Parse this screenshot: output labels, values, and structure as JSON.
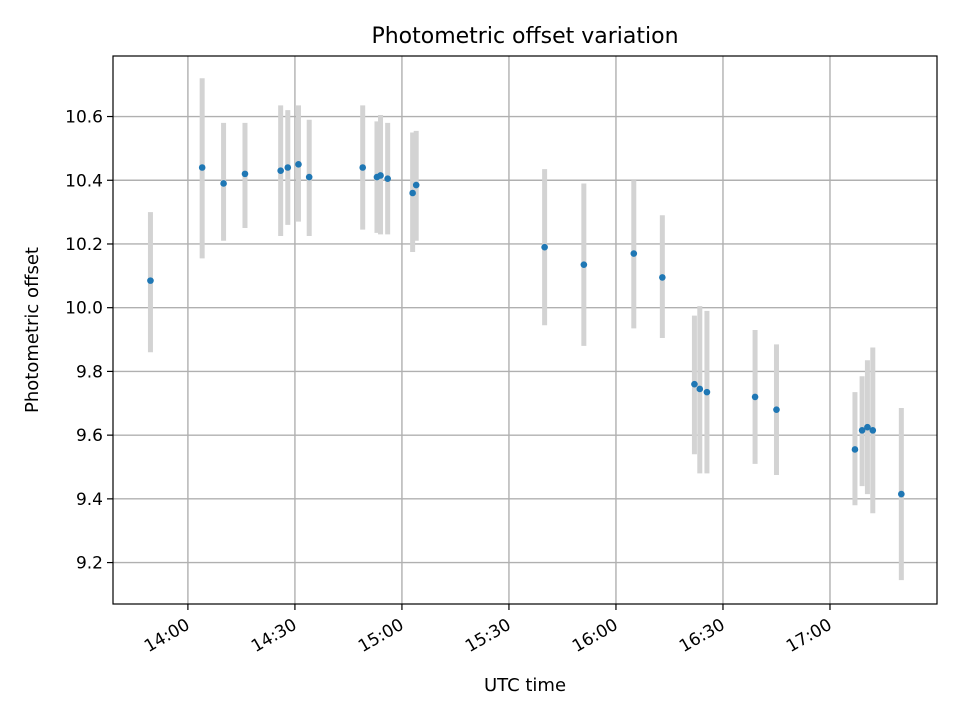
{
  "chart_data": {
    "type": "scatter",
    "title": "Photometric offset variation",
    "xlabel": "UTC time",
    "ylabel": "Photometric offset",
    "xlim": [
      "13:39",
      "17:30"
    ],
    "ylim": [
      9.07,
      10.79
    ],
    "xticks": [
      {
        "time": "14:00",
        "label": "14:00"
      },
      {
        "time": "14:30",
        "label": "14:30"
      },
      {
        "time": "15:00",
        "label": "15:00"
      },
      {
        "time": "15:30",
        "label": "15:30"
      },
      {
        "time": "16:00",
        "label": "16:00"
      },
      {
        "time": "16:30",
        "label": "16:30"
      },
      {
        "time": "17:00",
        "label": "17:00"
      }
    ],
    "yticks": [
      {
        "value": 9.2,
        "label": "9.2"
      },
      {
        "value": 9.4,
        "label": "9.4"
      },
      {
        "value": 9.6,
        "label": "9.6"
      },
      {
        "value": 9.8,
        "label": "9.8"
      },
      {
        "value": 10.0,
        "label": "10.0"
      },
      {
        "value": 10.2,
        "label": "10.2"
      },
      {
        "value": 10.4,
        "label": "10.4"
      },
      {
        "value": 10.6,
        "label": "10.6"
      }
    ],
    "grid": true,
    "marker_color": "#1f77b4",
    "errorbar_color": "#d3d3d3",
    "points": [
      {
        "x": "13:49:30",
        "y": 10.085,
        "lo": 9.86,
        "hi": 10.3
      },
      {
        "x": "14:04:00",
        "y": 10.44,
        "lo": 10.155,
        "hi": 10.72
      },
      {
        "x": "14:10:00",
        "y": 10.39,
        "lo": 10.21,
        "hi": 10.58
      },
      {
        "x": "14:16:00",
        "y": 10.42,
        "lo": 10.25,
        "hi": 10.58
      },
      {
        "x": "14:26:00",
        "y": 10.43,
        "lo": 10.225,
        "hi": 10.635
      },
      {
        "x": "14:28:00",
        "y": 10.44,
        "lo": 10.26,
        "hi": 10.62
      },
      {
        "x": "14:31:00",
        "y": 10.45,
        "lo": 10.27,
        "hi": 10.635
      },
      {
        "x": "14:34:00",
        "y": 10.41,
        "lo": 10.225,
        "hi": 10.59
      },
      {
        "x": "14:49:00",
        "y": 10.44,
        "lo": 10.245,
        "hi": 10.635
      },
      {
        "x": "14:53:00",
        "y": 10.41,
        "lo": 10.235,
        "hi": 10.585
      },
      {
        "x": "14:54:00",
        "y": 10.415,
        "lo": 10.23,
        "hi": 10.605
      },
      {
        "x": "14:56:00",
        "y": 10.405,
        "lo": 10.23,
        "hi": 10.58
      },
      {
        "x": "15:03:00",
        "y": 10.36,
        "lo": 10.175,
        "hi": 10.55
      },
      {
        "x": "15:04:00",
        "y": 10.385,
        "lo": 10.21,
        "hi": 10.555
      },
      {
        "x": "15:40:00",
        "y": 10.19,
        "lo": 9.945,
        "hi": 10.435
      },
      {
        "x": "15:51:00",
        "y": 10.135,
        "lo": 9.88,
        "hi": 10.39
      },
      {
        "x": "16:05:00",
        "y": 10.17,
        "lo": 9.935,
        "hi": 10.4
      },
      {
        "x": "16:13:00",
        "y": 10.095,
        "lo": 9.905,
        "hi": 10.29
      },
      {
        "x": "16:22:00",
        "y": 9.76,
        "lo": 9.54,
        "hi": 9.975
      },
      {
        "x": "16:23:30",
        "y": 9.745,
        "lo": 9.48,
        "hi": 10.005
      },
      {
        "x": "16:25:30",
        "y": 9.735,
        "lo": 9.48,
        "hi": 9.99
      },
      {
        "x": "16:39:00",
        "y": 9.72,
        "lo": 9.51,
        "hi": 9.93
      },
      {
        "x": "16:45:00",
        "y": 9.68,
        "lo": 9.475,
        "hi": 9.885
      },
      {
        "x": "17:07:00",
        "y": 9.555,
        "lo": 9.38,
        "hi": 9.735
      },
      {
        "x": "17:09:00",
        "y": 9.615,
        "lo": 9.44,
        "hi": 9.785
      },
      {
        "x": "17:10:30",
        "y": 9.625,
        "lo": 9.415,
        "hi": 9.835
      },
      {
        "x": "17:12:00",
        "y": 9.615,
        "lo": 9.355,
        "hi": 9.875
      },
      {
        "x": "17:20:00",
        "y": 9.415,
        "lo": 9.145,
        "hi": 9.685
      }
    ]
  }
}
